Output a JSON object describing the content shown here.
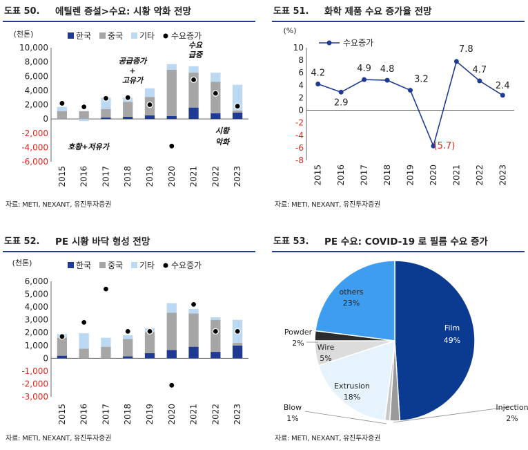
{
  "charts": [
    {
      "number": "도표 50.",
      "title": "에틸렌 증설>수요: 시황 악화 전망",
      "source": "자료: METI, NEXANT, 유진투자증권",
      "unit": "(천톤)",
      "annotations": [
        "공급증가 + 고유가",
        "수요 급증",
        "호황+저유가",
        "시황 악화"
      ]
    },
    {
      "number": "도표 51.",
      "title": "화학 제품 수요 증가율 전망",
      "source": "자료: METI, NEXANT, 유진투자증권",
      "unit": "(%)"
    },
    {
      "number": "도표 52.",
      "title": "PE 시황 바닥 형성 전망",
      "source": "자료: METI, NEXANT, 유진투자증권",
      "unit": "(천톤)"
    },
    {
      "number": "도표 53.",
      "title": "PE 수요: COVID-19 로 필름 수요 증가",
      "source": "자료: METI, NEXANT, 유진투자증권"
    }
  ],
  "chart_data": [
    {
      "type": "bar",
      "stacked": true,
      "categories": [
        "2015",
        "2016",
        "2017",
        "2018",
        "2019",
        "2020",
        "2021",
        "2022",
        "2023"
      ],
      "series": [
        {
          "name": "한국",
          "color": "#1f3a93",
          "values": [
            0,
            0,
            200,
            300,
            500,
            400,
            1600,
            800,
            900
          ]
        },
        {
          "name": "중국",
          "color": "#a6a6a6",
          "values": [
            1100,
            1100,
            1200,
            2100,
            2600,
            6500,
            4900,
            4400,
            300
          ]
        },
        {
          "name": "기타",
          "color": "#bcd9f3",
          "values": [
            600,
            -300,
            1600,
            600,
            1200,
            800,
            900,
            1300,
            3600
          ]
        }
      ],
      "markers": {
        "name": "수요증가",
        "values": [
          2200,
          1700,
          2900,
          3000,
          2000,
          -3800,
          5500,
          3600,
          1800
        ]
      },
      "ylim": [
        -6000,
        10000
      ],
      "yticks": [
        "-6,000",
        "-4,000",
        "-2,000",
        "0",
        "2,000",
        "4,000",
        "6,000",
        "8,000",
        "10,000"
      ],
      "legend": "top"
    },
    {
      "type": "line",
      "categories": [
        "2015",
        "2016",
        "2017",
        "2018",
        "2019",
        "2020",
        "2021",
        "2022",
        "2023"
      ],
      "series": [
        {
          "name": "수요증가",
          "color": "#1f3a93",
          "values": [
            4.2,
            2.9,
            4.9,
            4.8,
            3.2,
            -5.7,
            7.8,
            4.7,
            2.4
          ]
        }
      ],
      "labels": [
        "4.2",
        "2.9",
        "4.9",
        "4.8",
        "3.2",
        "(5.7)",
        "7.8",
        "4.7",
        "2.4"
      ],
      "ylim": [
        -8,
        10
      ],
      "yticks": [
        "-8",
        "-6",
        "-4",
        "-2",
        "0",
        "2",
        "4",
        "6",
        "8",
        "10"
      ],
      "legend": "top-left"
    },
    {
      "type": "bar",
      "stacked": true,
      "categories": [
        "2015",
        "2016",
        "2017",
        "2018",
        "2019",
        "2020",
        "2021",
        "2022",
        "2023"
      ],
      "series": [
        {
          "name": "한국",
          "color": "#1f3a93",
          "values": [
            200,
            0,
            0,
            150,
            400,
            650,
            900,
            500,
            1000
          ]
        },
        {
          "name": "중국",
          "color": "#a6a6a6",
          "values": [
            1400,
            750,
            900,
            1350,
            1650,
            2900,
            2600,
            2500,
            200
          ]
        },
        {
          "name": "기타",
          "color": "#bcd9f3",
          "values": [
            300,
            1200,
            700,
            300,
            300,
            750,
            350,
            200,
            1800
          ]
        }
      ],
      "markers": {
        "name": "수요증가",
        "values": [
          1700,
          2800,
          5400,
          2100,
          2100,
          -2100,
          4200,
          2100,
          2100
        ]
      },
      "ylim": [
        -3000,
        6000
      ],
      "yticks": [
        "-3,000",
        "-2,000",
        "-1,000",
        "0",
        "1,000",
        "2,000",
        "3,000",
        "4,000",
        "5,000",
        "6,000"
      ],
      "legend": "top"
    },
    {
      "type": "pie",
      "slices": [
        {
          "label": "Film",
          "pct": "49%",
          "value": 49,
          "color": "#0b3a91"
        },
        {
          "label": "Injection",
          "pct": "2%",
          "value": 2,
          "color": "#9a9a9a"
        },
        {
          "label": "Blow",
          "pct": "1%",
          "value": 1,
          "color": "#c8c8c8"
        },
        {
          "label": "Extrusion",
          "pct": "18%",
          "value": 18,
          "color": "#e6f2fc"
        },
        {
          "label": "Wire",
          "pct": "5%",
          "value": 5,
          "color": "#dcdcdc"
        },
        {
          "label": "Powder",
          "pct": "2%",
          "value": 2,
          "color": "#2b2b2b"
        },
        {
          "label": "others",
          "pct": "23%",
          "value": 23,
          "color": "#3f9df0"
        }
      ]
    }
  ]
}
